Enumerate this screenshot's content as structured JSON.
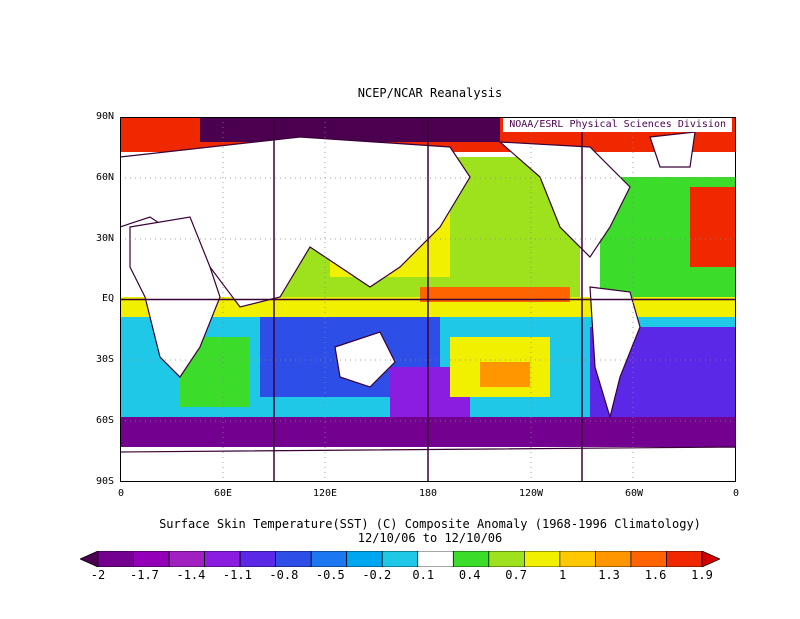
{
  "title": "NCEP/NCAR Reanalysis",
  "credit": "NOAA/ESRL Physical Sciences Division",
  "lat_labels": [
    "90N",
    "60N",
    "30N",
    "EQ",
    "30S",
    "60S",
    "90S"
  ],
  "lon_labels": [
    "0",
    "60E",
    "120E",
    "180",
    "120W",
    "60W",
    "0"
  ],
  "caption_line1": "Surface Skin Temperature(SST) (C) Composite Anomaly (1968-1996 Climatology)",
  "caption_line2": "12/10/06  to 12/10/06",
  "colorbar": {
    "labels": [
      "-2",
      "-1.7",
      "-1.4",
      "-1.1",
      "-0.8",
      "-0.5",
      "-0.2",
      "0.1",
      "0.4",
      "0.7",
      "1",
      "1.3",
      "1.6",
      "1.9"
    ],
    "colors": [
      "#4a004f",
      "#740090",
      "#9400b8",
      "#a020c0",
      "#8a1de0",
      "#5a28e6",
      "#2e4ee8",
      "#1b78f0",
      "#00a6f0",
      "#20c8e8",
      "#ffffff",
      "#3cdc2a",
      "#9de21c",
      "#f0f000",
      "#ffc800",
      "#ff9600",
      "#ff6400",
      "#f02800",
      "#d20000"
    ]
  }
}
